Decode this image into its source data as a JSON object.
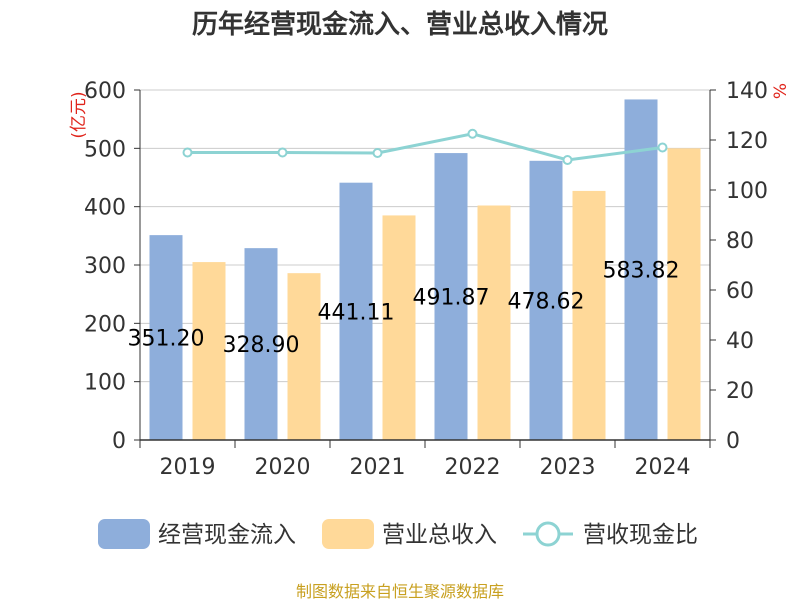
{
  "chart_data": {
    "type": "bar",
    "title": "历年经营现金流入、营业总收入情况",
    "categories": [
      "2019",
      "2020",
      "2021",
      "2022",
      "2023",
      "2024"
    ],
    "series": [
      {
        "name": "经营现金流入",
        "kind": "bar",
        "axis": "left",
        "color": "#8eaedb",
        "values": [
          351.2,
          328.9,
          441.11,
          491.87,
          478.62,
          583.82
        ],
        "labels": [
          "351.20",
          "328.90",
          "441.11",
          "491.87",
          "478.62",
          "583.82"
        ]
      },
      {
        "name": "营业总收入",
        "kind": "bar",
        "axis": "left",
        "color": "#ffd999",
        "values": [
          305,
          286,
          385,
          402,
          427,
          500
        ]
      },
      {
        "name": "营收现金比",
        "kind": "line",
        "axis": "right",
        "color": "#8dd3d3",
        "values": [
          115,
          115,
          114.8,
          122.5,
          112,
          117
        ]
      }
    ],
    "left_axis": {
      "unit": "(亿元)",
      "ylim": [
        0,
        600
      ],
      "ticks": [
        "0",
        "100",
        "200",
        "300",
        "400",
        "500",
        "600"
      ]
    },
    "right_axis": {
      "unit": "%",
      "ylim": [
        0,
        140
      ],
      "ticks": [
        "0",
        "20",
        "40",
        "60",
        "80",
        "100",
        "120",
        "140"
      ]
    },
    "grid": true,
    "legend_position": "bottom"
  },
  "source_note": "制图数据来自恒生聚源数据库"
}
